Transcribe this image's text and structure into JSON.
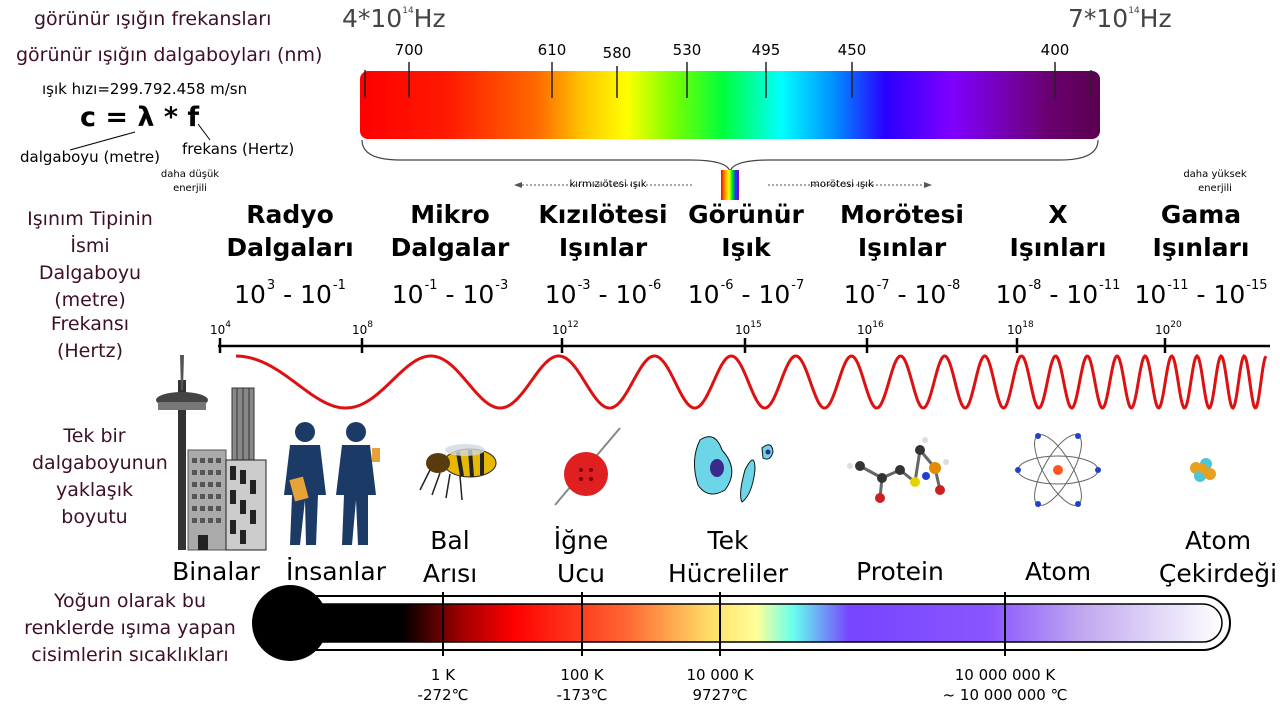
{
  "header": {
    "freq_title": "görünür ışığın frekansları",
    "wavelength_title": "görünür ışığın dalgaboyları (nm)",
    "freq_left": {
      "base": "4*10",
      "exp": "14",
      "unit": "Hz"
    },
    "freq_right": {
      "base": "7*10",
      "exp": "14",
      "unit": "Hz"
    },
    "wavelength_ticks": [
      "700",
      "610",
      "580",
      "530",
      "495",
      "450",
      "400"
    ]
  },
  "formula": {
    "speed": "ışık hızı=299.792.458 m/sn",
    "equation": "c = λ * f",
    "wavelength_label": "dalgaboyu (metre)",
    "frequency_label": "frekans (Hertz)"
  },
  "energy": {
    "lower": "daha düşük enerjili",
    "higher": "daha yüksek enerjili",
    "infrared_arrow": "kırmızıötesi ışık",
    "ultraviolet_arrow": "morötesi ışık"
  },
  "left_labels": {
    "type_name": "Işınım Tipinin İsmi",
    "wavelength": "Dalgaboyu (metre)",
    "frequency": "Frekansı (Hertz)",
    "size": "Tek bir dalgaboyunun yaklaşık boyutu",
    "temperature": "Yoğun olarak bu renklerde ışıma yapan cisimlerin sıcaklıkları"
  },
  "categories": [
    {
      "line1": "Radyo",
      "line2": "Dalgaları",
      "r1": "3",
      "r2": "-1"
    },
    {
      "line1": "Mikro",
      "line2": "Dalgalar",
      "r1": "-1",
      "r2": "-3"
    },
    {
      "line1": "Kızılötesi",
      "line2": "Işınlar",
      "r1": "-3",
      "r2": "-6"
    },
    {
      "line1": "Görünür",
      "line2": "Işık",
      "r1": "-6",
      "r2": "-7"
    },
    {
      "line1": "Morötesi",
      "line2": "Işınlar",
      "r1": "-7",
      "r2": "-8"
    },
    {
      "line1": "X",
      "line2": "Işınları",
      "r1": "-8",
      "r2": "-11"
    },
    {
      "line1": "Gama",
      "line2": "Işınları",
      "r1": "-11",
      "r2": "-15"
    }
  ],
  "freq_axis": [
    "4",
    "8",
    "12",
    "15",
    "16",
    "18",
    "20"
  ],
  "objects": [
    {
      "line1": "Binalar",
      "line2": ""
    },
    {
      "line1": "İnsanlar",
      "line2": ""
    },
    {
      "line1": "Bal",
      "line2": "Arısı"
    },
    {
      "line1": "İğne",
      "line2": "Ucu"
    },
    {
      "line1": "Tek",
      "line2": "Hücreliler"
    },
    {
      "line1": "Protein",
      "line2": ""
    },
    {
      "line1": "Atom",
      "line2": ""
    },
    {
      "line1": "Atom",
      "line2": "Çekirdeği"
    }
  ],
  "temperatures": [
    {
      "k": "1 K",
      "c": "-272℃"
    },
    {
      "k": "100 K",
      "c": "-173℃"
    },
    {
      "k": "10 000 K",
      "c": "9727℃"
    },
    {
      "k": "10 000 000 K",
      "c": "~ 10 000 000 ℃"
    }
  ],
  "colors": {
    "label": "#3d1028",
    "wave": "#dd1111"
  }
}
